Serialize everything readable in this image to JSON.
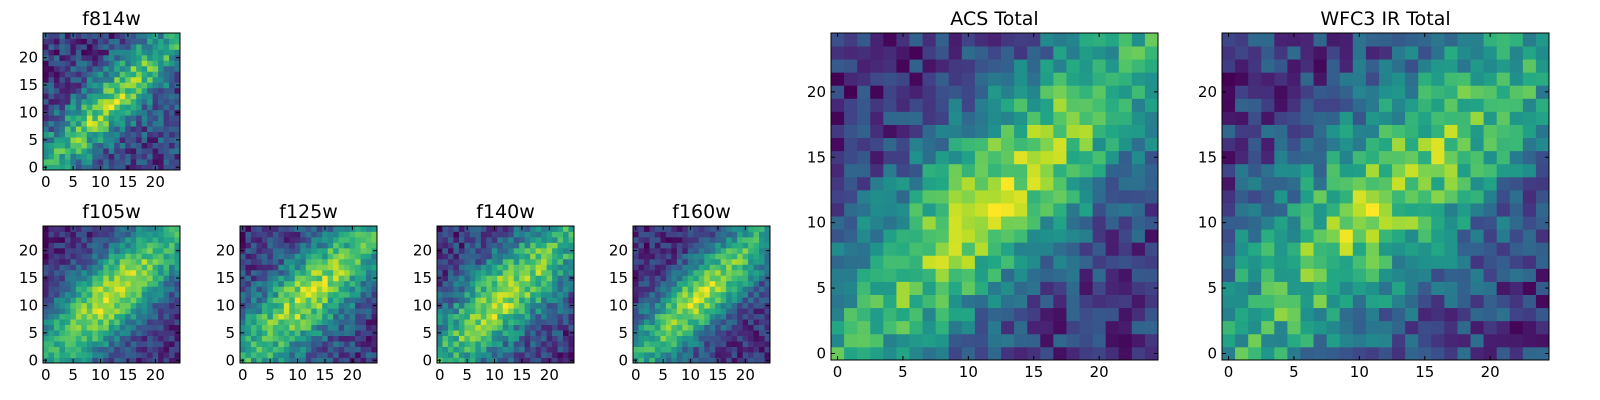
{
  "chart_data": [
    {
      "type": "heatmap",
      "title": "f814w",
      "xticks": [
        "0",
        "5",
        "10",
        "15",
        "20"
      ],
      "yticks": [
        "0",
        "5",
        "10",
        "15",
        "20"
      ],
      "grid_size": 25,
      "xlim": [
        0,
        25
      ],
      "ylim": [
        0,
        25
      ],
      "colormap": "viridis",
      "pattern": {
        "strength": 0.85,
        "noise": 0.55,
        "width": 3.2,
        "seed": 11
      }
    },
    {
      "type": "heatmap",
      "title": "f105w",
      "xticks": [
        "0",
        "5",
        "10",
        "15",
        "20"
      ],
      "yticks": [
        "0",
        "5",
        "10",
        "15",
        "20"
      ],
      "grid_size": 25,
      "xlim": [
        0,
        25
      ],
      "ylim": [
        0,
        25
      ],
      "colormap": "viridis",
      "pattern": {
        "strength": 1.0,
        "noise": 0.35,
        "width": 4.5,
        "seed": 23
      }
    },
    {
      "type": "heatmap",
      "title": "f125w",
      "xticks": [
        "0",
        "5",
        "10",
        "15",
        "20"
      ],
      "yticks": [
        "0",
        "5",
        "10",
        "15",
        "20"
      ],
      "grid_size": 25,
      "xlim": [
        0,
        25
      ],
      "ylim": [
        0,
        25
      ],
      "colormap": "viridis",
      "pattern": {
        "strength": 0.9,
        "noise": 0.45,
        "width": 4.5,
        "seed": 37
      }
    },
    {
      "type": "heatmap",
      "title": "f140w",
      "xticks": [
        "0",
        "5",
        "10",
        "15",
        "20"
      ],
      "yticks": [
        "0",
        "5",
        "10",
        "15",
        "20"
      ],
      "grid_size": 25,
      "xlim": [
        0,
        25
      ],
      "ylim": [
        0,
        25
      ],
      "colormap": "viridis",
      "pattern": {
        "strength": 0.9,
        "noise": 0.45,
        "width": 4.5,
        "seed": 41
      }
    },
    {
      "type": "heatmap",
      "title": "f160w",
      "xticks": [
        "0",
        "5",
        "10",
        "15",
        "20"
      ],
      "yticks": [
        "0",
        "5",
        "10",
        "15",
        "20"
      ],
      "grid_size": 25,
      "xlim": [
        0,
        25
      ],
      "ylim": [
        0,
        25
      ],
      "colormap": "viridis",
      "pattern": {
        "strength": 1.0,
        "noise": 0.4,
        "width": 3.8,
        "seed": 53
      }
    },
    {
      "type": "heatmap",
      "title": "ACS Total",
      "xticks": [
        "0",
        "5",
        "10",
        "15",
        "20"
      ],
      "yticks": [
        "0",
        "5",
        "10",
        "15",
        "20"
      ],
      "grid_size": 25,
      "xlim": [
        0,
        25
      ],
      "ylim": [
        0,
        25
      ],
      "colormap": "viridis",
      "pattern": {
        "strength": 1.0,
        "noise": 0.45,
        "width": 4.0,
        "seed": 67
      }
    },
    {
      "type": "heatmap",
      "title": "WFC3 IR Total",
      "xticks": [
        "0",
        "5",
        "10",
        "15",
        "20"
      ],
      "yticks": [
        "0",
        "5",
        "10",
        "15",
        "20"
      ],
      "grid_size": 25,
      "xlim": [
        0,
        25
      ],
      "ylim": [
        0,
        25
      ],
      "colormap": "viridis",
      "pattern": {
        "strength": 0.9,
        "noise": 0.5,
        "width": 4.2,
        "seed": 79
      }
    }
  ]
}
